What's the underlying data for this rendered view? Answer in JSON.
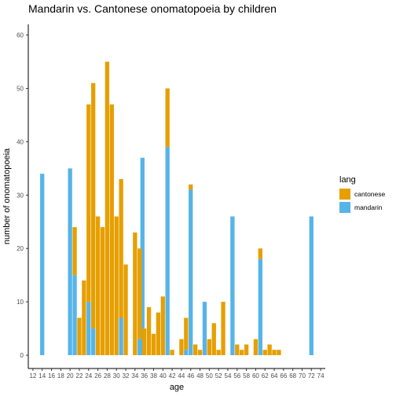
{
  "chart_data": {
    "type": "bar",
    "stacked": true,
    "title": "Mandarin vs. Cantonese onomatopoeia by children",
    "xlabel": "age",
    "ylabel": "number of onomatopoeia",
    "xlim": [
      11,
      75
    ],
    "ylim": [
      -2.5,
      62
    ],
    "x_ticks": [
      12,
      14,
      16,
      18,
      20,
      22,
      24,
      26,
      28,
      30,
      32,
      34,
      36,
      38,
      40,
      42,
      44,
      46,
      48,
      50,
      52,
      54,
      56,
      58,
      60,
      62,
      64,
      66,
      68,
      70,
      72,
      74
    ],
    "y_ticks": [
      0,
      10,
      20,
      30,
      40,
      50,
      60
    ],
    "grid": false,
    "legend_position": "right",
    "legend_title": "lang",
    "series": [
      {
        "name": "cantonese",
        "color": "#E69F00",
        "points": [
          [
            21,
            9
          ],
          [
            22,
            7
          ],
          [
            23,
            14
          ],
          [
            24,
            37
          ],
          [
            25,
            46
          ],
          [
            26,
            26
          ],
          [
            27,
            24
          ],
          [
            28,
            55
          ],
          [
            29,
            47
          ],
          [
            30,
            26
          ],
          [
            31,
            26
          ],
          [
            32,
            17
          ],
          [
            34,
            23
          ],
          [
            35,
            17
          ],
          [
            36,
            5
          ],
          [
            37,
            9
          ],
          [
            38,
            4
          ],
          [
            39,
            8
          ],
          [
            40,
            11
          ],
          [
            41,
            11
          ],
          [
            42,
            1
          ],
          [
            44,
            3
          ],
          [
            45,
            6
          ],
          [
            46,
            1
          ],
          [
            47,
            2
          ],
          [
            48,
            1
          ],
          [
            50,
            3
          ],
          [
            51,
            6
          ],
          [
            52,
            1
          ],
          [
            53,
            10
          ],
          [
            56,
            2
          ],
          [
            57,
            1
          ],
          [
            58,
            2
          ],
          [
            60,
            3
          ],
          [
            61,
            2
          ],
          [
            62,
            1
          ],
          [
            63,
            2
          ],
          [
            64,
            1
          ],
          [
            65,
            1
          ]
        ]
      },
      {
        "name": "mandarin",
        "color": "#56B4E9",
        "points": [
          [
            14,
            34
          ],
          [
            20,
            35
          ],
          [
            21,
            15
          ],
          [
            24,
            10
          ],
          [
            25,
            5
          ],
          [
            31,
            7
          ],
          [
            35,
            3
          ],
          [
            35.6,
            37
          ],
          [
            41,
            39
          ],
          [
            45,
            1
          ],
          [
            46,
            31
          ],
          [
            49,
            10
          ],
          [
            55,
            26
          ],
          [
            61,
            18
          ],
          [
            72,
            26
          ]
        ]
      }
    ]
  }
}
